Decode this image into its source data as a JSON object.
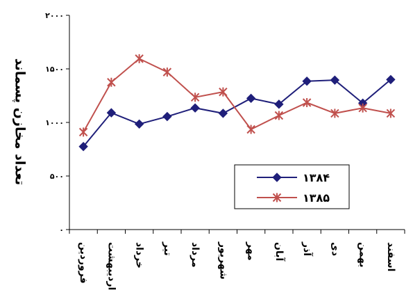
{
  "chart_data": {
    "type": "line",
    "ylabel": "تعداد مخازن پسماند",
    "xlabel": "",
    "ylim": [
      0,
      2000
    ],
    "yticks": [
      "۰",
      "۵۰۰",
      "۱۰۰۰",
      "۱۵۰۰",
      "۲۰۰۰"
    ],
    "categories": [
      "فروردین",
      "اردیبهشت",
      "خرداد",
      "تیر",
      "مرداد",
      "شهریور",
      "مهر",
      "آبان",
      "آذر",
      "دی",
      "بهمن",
      "اسفند"
    ],
    "series": [
      {
        "name": "۱۳۸۴",
        "color": "#1f1f7a",
        "marker": "diamond",
        "values": [
          775,
          1090,
          985,
          1055,
          1135,
          1085,
          1225,
          1170,
          1385,
          1395,
          1180,
          1400
        ]
      },
      {
        "name": "۱۳۸۵",
        "color": "#c0504d",
        "marker": "x",
        "values": [
          910,
          1375,
          1595,
          1470,
          1235,
          1285,
          935,
          1065,
          1185,
          1085,
          1135,
          1085
        ]
      }
    ],
    "grid": false,
    "legend_position": "inside-right"
  }
}
